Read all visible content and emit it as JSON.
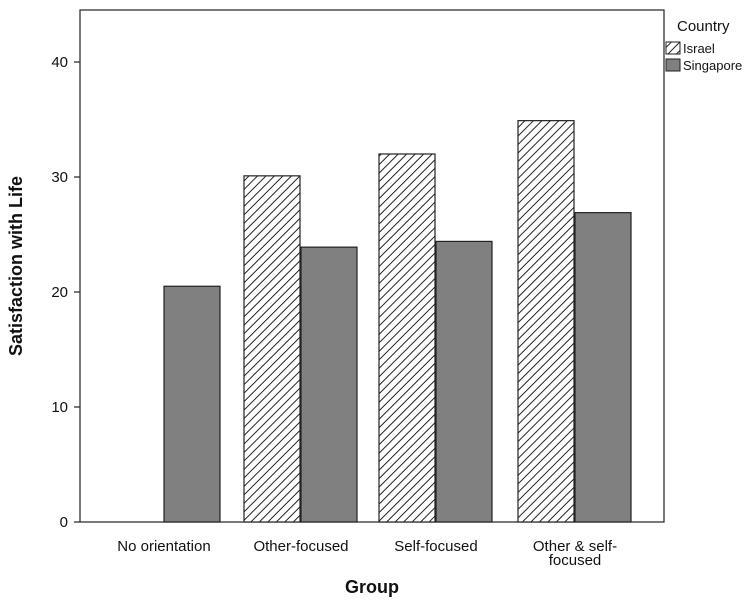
{
  "chart_data": {
    "type": "bar",
    "title": "",
    "xlabel": "Group",
    "ylabel": "Satisfaction with Life",
    "categories": [
      "No orientation",
      "Other-focused",
      "Self-focused",
      "Other & self-\nfocused"
    ],
    "series": [
      {
        "name": "Israel",
        "values": [
          null,
          30.1,
          32.0,
          34.9
        ],
        "fill": "hatch"
      },
      {
        "name": "Singapore",
        "values": [
          20.5,
          23.9,
          24.4,
          26.9
        ],
        "fill": "#808080"
      }
    ],
    "ylim": [
      0,
      46
    ],
    "yticks": [
      0,
      10,
      20,
      30,
      40
    ],
    "legend": {
      "title": "Country",
      "placement": "top-right"
    },
    "grid": false
  }
}
